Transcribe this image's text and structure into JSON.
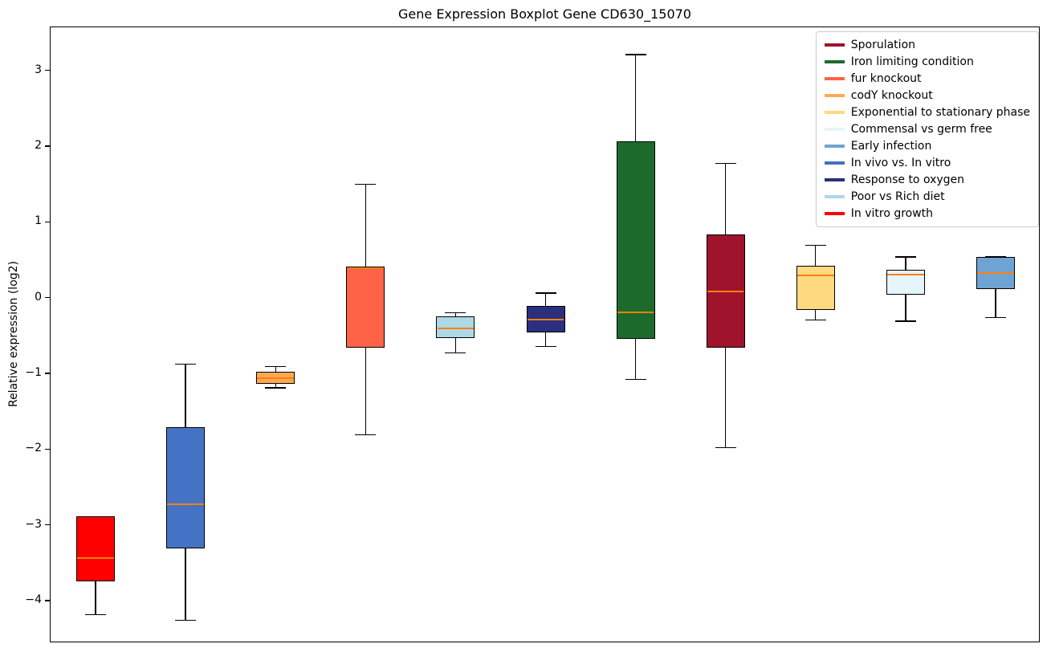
{
  "chart_data": {
    "type": "boxplot",
    "title": "Gene Expression Boxplot Gene CD630_15070",
    "ylabel": "Relative expression (log2)",
    "ylim": [
      -4.55,
      3.58
    ],
    "yticks": [
      3,
      2,
      1,
      0,
      -1,
      -2,
      -3,
      -4
    ],
    "grid": false,
    "legend_position": "upper right",
    "median_color": "#ff7f0e",
    "series": [
      {
        "name": "In vitro growth",
        "color": "#ff0000",
        "whisker_low": -4.17,
        "q1": -3.73,
        "median": -3.43,
        "q3": -2.88,
        "whisker_high": -2.88
      },
      {
        "name": "In vivo vs. In vitro",
        "color": "#4472c4",
        "whisker_low": -4.25,
        "q1": -3.3,
        "median": -2.72,
        "q3": -1.7,
        "whisker_high": -0.87
      },
      {
        "name": "codY knockout",
        "color": "#ffa852",
        "whisker_low": -1.18,
        "q1": -1.13,
        "median": -1.05,
        "q3": -0.97,
        "whisker_high": -0.9
      },
      {
        "name": "fur knockout",
        "color": "#ff6347",
        "whisker_low": -1.8,
        "q1": -0.65,
        "median": 0.4,
        "q3": 0.42,
        "whisker_high": 1.51
      },
      {
        "name": "Poor vs Rich diet",
        "color": "#add8e6",
        "whisker_low": -0.72,
        "q1": -0.52,
        "median": -0.4,
        "q3": -0.24,
        "whisker_high": -0.19
      },
      {
        "name": "Response to oxygen",
        "color": "#2b2f7e",
        "whisker_low": -0.63,
        "q1": -0.45,
        "median": -0.28,
        "q3": -0.1,
        "whisker_high": 0.07
      },
      {
        "name": "Iron limiting condition",
        "color": "#1c6b2c",
        "whisker_low": -1.07,
        "q1": -0.53,
        "median": -0.18,
        "q3": 2.08,
        "whisker_high": 3.22
      },
      {
        "name": "Sporulation",
        "color": "#a0132d",
        "whisker_low": -1.97,
        "q1": -0.65,
        "median": 0.09,
        "q3": 0.85,
        "whisker_high": 1.78
      },
      {
        "name": "Exponential to stationary phase",
        "color": "#ffd980",
        "whisker_low": -0.28,
        "q1": -0.15,
        "median": 0.3,
        "q3": 0.43,
        "whisker_high": 0.7
      },
      {
        "name": "Commensal vs germ free",
        "color": "#e4f5fb",
        "whisker_low": -0.3,
        "q1": 0.05,
        "median": 0.32,
        "q3": 0.38,
        "whisker_high": 0.55
      },
      {
        "name": "Early infection",
        "color": "#6fa3d3",
        "whisker_low": -0.25,
        "q1": 0.12,
        "median": 0.34,
        "q3": 0.55,
        "whisker_high": 0.55
      }
    ],
    "legend": [
      {
        "label": "Sporulation",
        "color": "#a0132d"
      },
      {
        "label": "Iron limiting condition",
        "color": "#1c6b2c"
      },
      {
        "label": "fur knockout",
        "color": "#ff6347"
      },
      {
        "label": "codY knockout",
        "color": "#ffa852"
      },
      {
        "label": "Exponential to stationary phase",
        "color": "#ffd980"
      },
      {
        "label": "Commensal vs germ free",
        "color": "#e4f5fb"
      },
      {
        "label": "Early infection",
        "color": "#6fa3d3"
      },
      {
        "label": "In vivo vs. In vitro",
        "color": "#4472c4"
      },
      {
        "label": "Response to oxygen",
        "color": "#2b2f7e"
      },
      {
        "label": "Poor vs Rich diet",
        "color": "#add8e6"
      },
      {
        "label": "In vitro growth",
        "color": "#ff0000"
      }
    ]
  }
}
